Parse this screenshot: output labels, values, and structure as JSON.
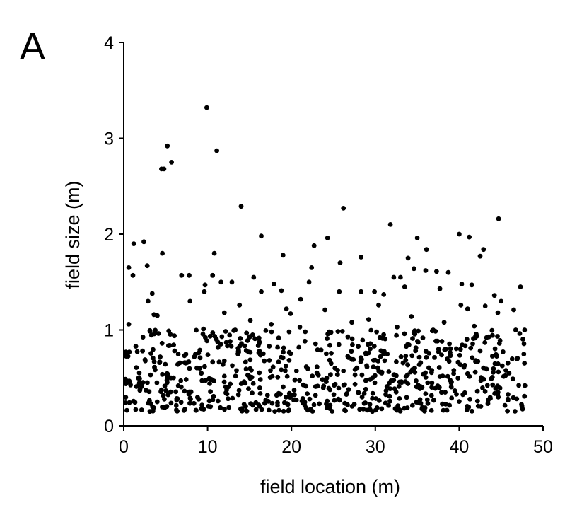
{
  "panel_label": "A",
  "chart_data": {
    "type": "scatter",
    "title": "",
    "xlabel": "field location (m)",
    "ylabel": "field size (m)",
    "xlim": [
      0,
      50
    ],
    "ylim": [
      0,
      4
    ],
    "xticks": [
      "0",
      "10",
      "20",
      "30",
      "40",
      "50"
    ],
    "yticks": [
      "0",
      "1",
      "2",
      "3",
      "4"
    ],
    "grid": false,
    "marker_color": "#000000",
    "series": [
      {
        "points": [
          [
            9.9,
            3.32
          ],
          [
            5.2,
            2.92
          ],
          [
            11.1,
            2.87
          ],
          [
            5.7,
            2.75
          ],
          [
            4.5,
            2.68
          ],
          [
            4.8,
            2.68
          ],
          [
            14.0,
            2.29
          ],
          [
            26.2,
            2.27
          ],
          [
            44.7,
            2.16
          ],
          [
            31.8,
            2.1
          ],
          [
            40.0,
            2.0
          ],
          [
            41.2,
            1.97
          ],
          [
            16.4,
            1.98
          ],
          [
            24.3,
            1.96
          ],
          [
            35.0,
            1.96
          ],
          [
            2.4,
            1.92
          ],
          [
            1.2,
            1.9
          ],
          [
            22.7,
            1.88
          ],
          [
            42.9,
            1.84
          ],
          [
            36.1,
            1.84
          ],
          [
            4.6,
            1.8
          ],
          [
            10.8,
            1.8
          ],
          [
            19.0,
            1.78
          ],
          [
            28.3,
            1.76
          ],
          [
            33.9,
            1.75
          ],
          [
            42.5,
            1.77
          ],
          [
            2.8,
            1.67
          ],
          [
            0.6,
            1.65
          ],
          [
            25.8,
            1.7
          ],
          [
            22.4,
            1.65
          ],
          [
            36.0,
            1.62
          ],
          [
            37.3,
            1.61
          ],
          [
            34.6,
            1.64
          ],
          [
            38.7,
            1.6
          ],
          [
            1.1,
            1.57
          ],
          [
            6.9,
            1.57
          ],
          [
            7.8,
            1.57
          ],
          [
            10.6,
            1.57
          ],
          [
            15.5,
            1.55
          ],
          [
            17.9,
            1.48
          ],
          [
            22.1,
            1.5
          ],
          [
            32.2,
            1.55
          ],
          [
            33.0,
            1.55
          ],
          [
            11.6,
            1.5
          ],
          [
            12.9,
            1.5
          ],
          [
            9.7,
            1.47
          ],
          [
            40.3,
            1.48
          ],
          [
            41.5,
            1.47
          ],
          [
            47.3,
            1.45
          ],
          [
            3.4,
            1.38
          ],
          [
            9.6,
            1.4
          ],
          [
            13.8,
            1.26
          ],
          [
            16.4,
            1.4
          ],
          [
            18.8,
            1.41
          ],
          [
            25.7,
            1.4
          ],
          [
            29.9,
            1.4
          ],
          [
            33.5,
            1.45
          ],
          [
            37.7,
            1.43
          ],
          [
            44.2,
            1.36
          ],
          [
            2.9,
            1.3
          ],
          [
            7.9,
            1.3
          ],
          [
            19.4,
            1.22
          ],
          [
            21.1,
            1.32
          ],
          [
            31.0,
            1.37
          ],
          [
            28.3,
            1.4
          ],
          [
            45.0,
            1.3
          ],
          [
            40.2,
            1.26
          ],
          [
            41.0,
            1.22
          ],
          [
            43.1,
            1.25
          ],
          [
            46.5,
            1.21
          ],
          [
            3.6,
            1.16
          ],
          [
            4.0,
            1.15
          ],
          [
            12.0,
            1.18
          ],
          [
            15.1,
            1.1
          ],
          [
            19.9,
            1.17
          ],
          [
            24.0,
            1.21
          ],
          [
            30.4,
            1.26
          ],
          [
            34.3,
            1.14
          ],
          [
            38.2,
            1.08
          ],
          [
            44.6,
            1.18
          ],
          [
            0.6,
            1.06
          ],
          [
            9.5,
            1.01
          ],
          [
            13.3,
            1.0
          ],
          [
            17.6,
            1.06
          ],
          [
            21.0,
            1.03
          ],
          [
            27.2,
            1.08
          ],
          [
            29.2,
            1.11
          ],
          [
            32.6,
            1.03
          ],
          [
            36.9,
            1.0
          ],
          [
            41.8,
            1.04
          ],
          [
            47.8,
            1.0
          ]
        ]
      }
    ],
    "dense_band": {
      "count": 720,
      "x_range": [
        0.2,
        47.9
      ],
      "y_range": [
        0.15,
        1.0
      ],
      "seed": 7
    }
  }
}
